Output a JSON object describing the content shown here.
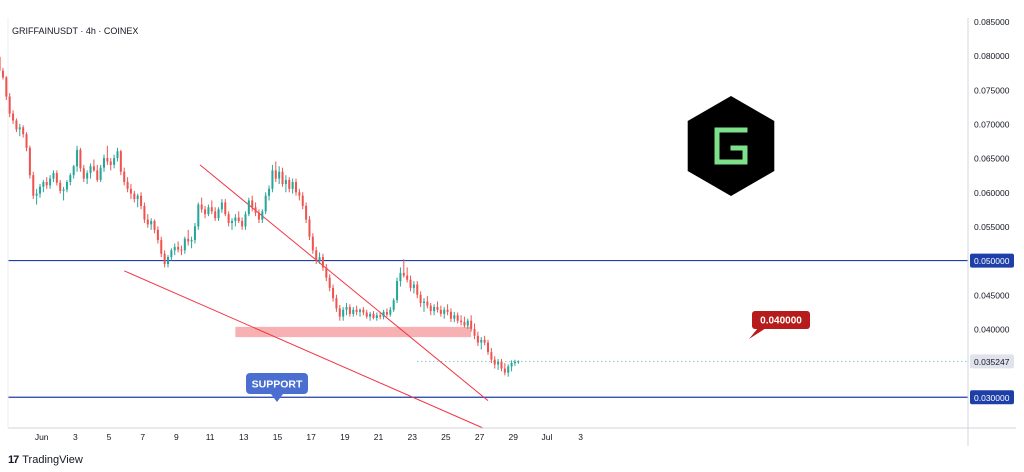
{
  "header": {
    "symbol_info": "GRIFFAINUSDT · 4h · COINEX"
  },
  "footer": {
    "brand_mark": "17",
    "brand_name": "TradingView"
  },
  "annotations": {
    "resistance_label": "0.040000",
    "support_label": "SUPPORT",
    "support_level": 0.03,
    "resistance_level": 0.05,
    "zone_low": 0.0388,
    "zone_high": 0.0403,
    "logo_letter": "G"
  },
  "colors": {
    "up_candle": "#26a69a",
    "down_candle": "#ef5350",
    "horizontal_line": "#1e3fa8",
    "trendline": "#f23645",
    "zone_fill": "#f7a9aa",
    "label_red": "#b71c1c",
    "support_badge": "#4a6fd1",
    "logo_bg": "#000000",
    "logo_letter": "#7ee08a"
  },
  "chart_data": {
    "type": "candlestick",
    "title": "GRIFFAINUSDT · 4h · COINEX",
    "ylim": [
      0.0255,
      0.0855
    ],
    "xlim": [
      -1,
      56
    ],
    "y_ticks": [
      "0.085000",
      "0.080000",
      "0.075000",
      "0.070000",
      "0.065000",
      "0.060000",
      "0.055000",
      "0.050000",
      "0.045000",
      "0.040000",
      "0.035247",
      "0.030000"
    ],
    "y_tick_values": [
      0.085,
      0.08,
      0.075,
      0.07,
      0.065,
      0.06,
      0.055,
      0.05,
      0.045,
      0.04,
      0.035247,
      0.03
    ],
    "highlighted_ticks": [
      "0.050000",
      "0.030000"
    ],
    "current_price_tick": "0.035247",
    "x_ticks": [
      {
        "label": "Jun",
        "day": 1
      },
      {
        "label": "3",
        "day": 3
      },
      {
        "label": "5",
        "day": 5
      },
      {
        "label": "7",
        "day": 7
      },
      {
        "label": "9",
        "day": 9
      },
      {
        "label": "11",
        "day": 11
      },
      {
        "label": "13",
        "day": 13
      },
      {
        "label": "15",
        "day": 15
      },
      {
        "label": "17",
        "day": 17
      },
      {
        "label": "19",
        "day": 19
      },
      {
        "label": "21",
        "day": 21
      },
      {
        "label": "23",
        "day": 23
      },
      {
        "label": "25",
        "day": 25
      },
      {
        "label": "27",
        "day": 27
      },
      {
        "label": "29",
        "day": 29
      },
      {
        "label": "Jul",
        "day": 31
      },
      {
        "label": "3",
        "day": 33
      }
    ],
    "trendlines": [
      {
        "name": "upper",
        "from": [
          10.4,
          0.064
        ],
        "to": [
          27.5,
          0.0295
        ]
      },
      {
        "name": "lower",
        "from": [
          5.9,
          0.0485
        ],
        "to": [
          27.2,
          0.0255
        ]
      }
    ],
    "candles_x_start_day": -1.5,
    "candles_x_step_day": 0.2,
    "candles": [
      [
        0.0798,
        0.08,
        0.0775,
        0.0778
      ],
      [
        0.0778,
        0.0782,
        0.0765,
        0.0768
      ],
      [
        0.0768,
        0.077,
        0.0735,
        0.074
      ],
      [
        0.074,
        0.0745,
        0.071,
        0.0715
      ],
      [
        0.0715,
        0.072,
        0.07,
        0.0705
      ],
      [
        0.0705,
        0.0708,
        0.0688,
        0.0692
      ],
      [
        0.0692,
        0.07,
        0.0682,
        0.0695
      ],
      [
        0.0695,
        0.0698,
        0.068,
        0.0685
      ],
      [
        0.0685,
        0.0688,
        0.066,
        0.0665
      ],
      [
        0.0665,
        0.0668,
        0.062,
        0.0625
      ],
      [
        0.0625,
        0.063,
        0.059,
        0.0595
      ],
      [
        0.0595,
        0.0605,
        0.0582,
        0.0598
      ],
      [
        0.0598,
        0.0612,
        0.0592,
        0.0608
      ],
      [
        0.0608,
        0.0618,
        0.06,
        0.0615
      ],
      [
        0.0615,
        0.0622,
        0.0605,
        0.061
      ],
      [
        0.061,
        0.0625,
        0.0605,
        0.062
      ],
      [
        0.062,
        0.0632,
        0.0615,
        0.0628
      ],
      [
        0.0628,
        0.0632,
        0.061,
        0.0614
      ],
      [
        0.0614,
        0.0618,
        0.0598,
        0.0602
      ],
      [
        0.0602,
        0.0608,
        0.0588,
        0.0604
      ],
      [
        0.0604,
        0.0618,
        0.06,
        0.0615
      ],
      [
        0.0615,
        0.0628,
        0.061,
        0.0625
      ],
      [
        0.0625,
        0.064,
        0.062,
        0.0638
      ],
      [
        0.0638,
        0.0668,
        0.063,
        0.0662
      ],
      [
        0.0662,
        0.0665,
        0.063,
        0.0635
      ],
      [
        0.0635,
        0.064,
        0.0615,
        0.062
      ],
      [
        0.062,
        0.0632,
        0.0612,
        0.0628
      ],
      [
        0.0628,
        0.0642,
        0.062,
        0.0638
      ],
      [
        0.0638,
        0.0648,
        0.063,
        0.0632
      ],
      [
        0.0632,
        0.064,
        0.0615,
        0.0618
      ],
      [
        0.0618,
        0.064,
        0.0615,
        0.0636
      ],
      [
        0.0636,
        0.0655,
        0.063,
        0.065
      ],
      [
        0.065,
        0.0668,
        0.064,
        0.0645
      ],
      [
        0.0645,
        0.065,
        0.0632,
        0.064
      ],
      [
        0.064,
        0.0655,
        0.0635,
        0.065
      ],
      [
        0.065,
        0.0665,
        0.0645,
        0.066
      ],
      [
        0.066,
        0.0662,
        0.0625,
        0.063
      ],
      [
        0.063,
        0.0636,
        0.061,
        0.0615
      ],
      [
        0.0615,
        0.0622,
        0.06,
        0.0605
      ],
      [
        0.0605,
        0.0612,
        0.059,
        0.0598
      ],
      [
        0.0598,
        0.0602,
        0.0585,
        0.059
      ],
      [
        0.059,
        0.0598,
        0.0578,
        0.0595
      ],
      [
        0.0595,
        0.06,
        0.0575,
        0.058
      ],
      [
        0.058,
        0.0585,
        0.0555,
        0.056
      ],
      [
        0.056,
        0.0568,
        0.0548,
        0.0553
      ],
      [
        0.0553,
        0.0562,
        0.0545,
        0.0558
      ],
      [
        0.0558,
        0.056,
        0.054,
        0.0545
      ],
      [
        0.0545,
        0.055,
        0.0525,
        0.053
      ],
      [
        0.053,
        0.0535,
        0.0505,
        0.051
      ],
      [
        0.051,
        0.0515,
        0.049,
        0.0495
      ],
      [
        0.0495,
        0.0508,
        0.049,
        0.0505
      ],
      [
        0.0505,
        0.0518,
        0.05,
        0.0515
      ],
      [
        0.0515,
        0.0525,
        0.0508,
        0.052
      ],
      [
        0.052,
        0.0528,
        0.0512,
        0.0516
      ],
      [
        0.0516,
        0.0522,
        0.0508,
        0.0515
      ],
      [
        0.0515,
        0.0535,
        0.051,
        0.0532
      ],
      [
        0.0532,
        0.0545,
        0.0522,
        0.0528
      ],
      [
        0.0528,
        0.0535,
        0.0518,
        0.053
      ],
      [
        0.053,
        0.0555,
        0.0525,
        0.055
      ],
      [
        0.055,
        0.0585,
        0.0545,
        0.0582
      ],
      [
        0.0582,
        0.0592,
        0.057,
        0.0575
      ],
      [
        0.0575,
        0.058,
        0.0562,
        0.0568
      ],
      [
        0.0568,
        0.0582,
        0.0565,
        0.0578
      ],
      [
        0.0578,
        0.0588,
        0.0568,
        0.0572
      ],
      [
        0.0572,
        0.0578,
        0.0558,
        0.0562
      ],
      [
        0.0562,
        0.0578,
        0.0558,
        0.0575
      ],
      [
        0.0575,
        0.059,
        0.057,
        0.0585
      ],
      [
        0.0585,
        0.059,
        0.0565,
        0.0568
      ],
      [
        0.0568,
        0.0572,
        0.055,
        0.0555
      ],
      [
        0.0555,
        0.0562,
        0.0545,
        0.0558
      ],
      [
        0.0558,
        0.0568,
        0.055,
        0.0563
      ],
      [
        0.0563,
        0.0572,
        0.0555,
        0.0558
      ],
      [
        0.0558,
        0.0563,
        0.0545,
        0.055
      ],
      [
        0.055,
        0.0572,
        0.0545,
        0.0568
      ],
      [
        0.0568,
        0.0592,
        0.0565,
        0.0588
      ],
      [
        0.0588,
        0.0595,
        0.0572,
        0.0578
      ],
      [
        0.0578,
        0.0585,
        0.0565,
        0.057
      ],
      [
        0.057,
        0.0575,
        0.0555,
        0.056
      ],
      [
        0.056,
        0.0575,
        0.0555,
        0.0572
      ],
      [
        0.0572,
        0.06,
        0.0568,
        0.0595
      ],
      [
        0.0595,
        0.061,
        0.0588,
        0.0605
      ],
      [
        0.0605,
        0.064,
        0.06,
        0.0632
      ],
      [
        0.0632,
        0.0645,
        0.0615,
        0.062
      ],
      [
        0.062,
        0.0638,
        0.0612,
        0.063
      ],
      [
        0.063,
        0.0636,
        0.0608,
        0.0612
      ],
      [
        0.0612,
        0.0625,
        0.06,
        0.0618
      ],
      [
        0.0618,
        0.0622,
        0.06,
        0.0605
      ],
      [
        0.0605,
        0.062,
        0.0598,
        0.0615
      ],
      [
        0.0615,
        0.062,
        0.0595,
        0.06
      ],
      [
        0.06,
        0.0605,
        0.0588,
        0.0595
      ],
      [
        0.0595,
        0.06,
        0.0575,
        0.058
      ],
      [
        0.058,
        0.0585,
        0.0555,
        0.056
      ],
      [
        0.056,
        0.0565,
        0.053,
        0.0535
      ],
      [
        0.0535,
        0.054,
        0.051,
        0.0515
      ],
      [
        0.0515,
        0.052,
        0.0495,
        0.05
      ],
      [
        0.05,
        0.0512,
        0.0495,
        0.0505
      ],
      [
        0.0505,
        0.051,
        0.0485,
        0.049
      ],
      [
        0.049,
        0.0495,
        0.047,
        0.0475
      ],
      [
        0.0475,
        0.048,
        0.0455,
        0.046
      ],
      [
        0.046,
        0.0465,
        0.044,
        0.0445
      ],
      [
        0.0445,
        0.045,
        0.0425,
        0.043
      ],
      [
        0.043,
        0.0435,
        0.0412,
        0.0418
      ],
      [
        0.0418,
        0.0432,
        0.0412,
        0.0428
      ],
      [
        0.0428,
        0.0438,
        0.042,
        0.0432
      ],
      [
        0.0432,
        0.0436,
        0.0418,
        0.0422
      ],
      [
        0.0422,
        0.0432,
        0.0418,
        0.0428
      ],
      [
        0.0428,
        0.0434,
        0.042,
        0.0425
      ],
      [
        0.0425,
        0.043,
        0.0418,
        0.0428
      ],
      [
        0.0428,
        0.0432,
        0.042,
        0.0424
      ],
      [
        0.0424,
        0.0428,
        0.0415,
        0.0418
      ],
      [
        0.0418,
        0.0425,
        0.0412,
        0.0422
      ],
      [
        0.0422,
        0.0426,
        0.0414,
        0.0416
      ],
      [
        0.0416,
        0.0424,
        0.0412,
        0.042
      ],
      [
        0.042,
        0.0425,
        0.0414,
        0.0418
      ],
      [
        0.0418,
        0.0428,
        0.0414,
        0.0425
      ],
      [
        0.0425,
        0.043,
        0.0418,
        0.0421
      ],
      [
        0.0421,
        0.0432,
        0.0418,
        0.0428
      ],
      [
        0.0428,
        0.0445,
        0.0425,
        0.0442
      ],
      [
        0.0442,
        0.0475,
        0.0438,
        0.047
      ],
      [
        0.047,
        0.049,
        0.0462,
        0.0482
      ],
      [
        0.0482,
        0.0502,
        0.0475,
        0.0478
      ],
      [
        0.0478,
        0.049,
        0.0468,
        0.0472
      ],
      [
        0.0472,
        0.0478,
        0.0455,
        0.046
      ],
      [
        0.046,
        0.047,
        0.0452,
        0.0465
      ],
      [
        0.0465,
        0.047,
        0.0445,
        0.045
      ],
      [
        0.045,
        0.0455,
        0.0432,
        0.0438
      ],
      [
        0.0438,
        0.0445,
        0.0425,
        0.044
      ],
      [
        0.044,
        0.0448,
        0.043,
        0.0434
      ],
      [
        0.0434,
        0.0438,
        0.042,
        0.0426
      ],
      [
        0.0426,
        0.0436,
        0.042,
        0.0432
      ],
      [
        0.0432,
        0.044,
        0.0424,
        0.0428
      ],
      [
        0.0428,
        0.0434,
        0.0418,
        0.0422
      ],
      [
        0.0422,
        0.0432,
        0.0415,
        0.0428
      ],
      [
        0.0428,
        0.0436,
        0.042,
        0.0425
      ],
      [
        0.0425,
        0.043,
        0.041,
        0.0415
      ],
      [
        0.0415,
        0.0425,
        0.041,
        0.042
      ],
      [
        0.042,
        0.0424,
        0.0408,
        0.0412
      ],
      [
        0.0412,
        0.042,
        0.0405,
        0.041
      ],
      [
        0.041,
        0.0418,
        0.0402,
        0.0405
      ],
      [
        0.0405,
        0.0415,
        0.04,
        0.0412
      ],
      [
        0.0412,
        0.042,
        0.0396,
        0.04
      ],
      [
        0.04,
        0.0408,
        0.0385,
        0.039
      ],
      [
        0.039,
        0.0396,
        0.0375,
        0.038
      ],
      [
        0.038,
        0.0388,
        0.037,
        0.0384
      ],
      [
        0.0384,
        0.039,
        0.0376,
        0.038
      ],
      [
        0.038,
        0.0384,
        0.0362,
        0.0366
      ],
      [
        0.0366,
        0.0372,
        0.035,
        0.0355
      ],
      [
        0.0355,
        0.036,
        0.0342,
        0.0348
      ],
      [
        0.0348,
        0.0356,
        0.034,
        0.0352
      ],
      [
        0.0352,
        0.0356,
        0.0338,
        0.0342
      ],
      [
        0.0342,
        0.035,
        0.0332,
        0.0336
      ],
      [
        0.0336,
        0.0348,
        0.033,
        0.0345
      ],
      [
        0.0345,
        0.0354,
        0.0338,
        0.035
      ],
      [
        0.035,
        0.0355,
        0.0346,
        0.0352
      ],
      [
        0.0352,
        0.0354,
        0.0349,
        0.03525
      ]
    ]
  }
}
